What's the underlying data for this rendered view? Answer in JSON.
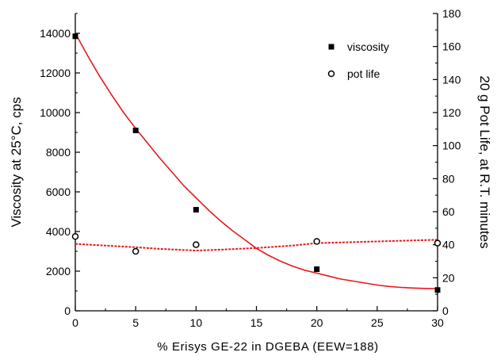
{
  "chart_data": {
    "type": "scatter",
    "xlabel": "% Erisys GE-22 in DGEBA (EEW=188)",
    "ylabel_left": "Viscosity at 25°C, cps",
    "ylabel_right": "20 g Pot Life, at R.T. minutes",
    "xlim": [
      0,
      30
    ],
    "ylim_left": [
      0,
      15000
    ],
    "ylim_right": [
      0,
      180
    ],
    "x_ticks": [
      "0",
      "5",
      "10",
      "15",
      "20",
      "25",
      "30"
    ],
    "y_left_ticks": [
      "0",
      "2000",
      "4000",
      "6000",
      "8000",
      "10000",
      "12000",
      "14000"
    ],
    "y_right_ticks": [
      "0",
      "20",
      "40",
      "60",
      "80",
      "100",
      "120",
      "140",
      "160",
      "180"
    ],
    "x_tick_values": [
      0,
      5,
      10,
      15,
      20,
      25,
      30
    ],
    "y_left_tick_values": [
      0,
      2000,
      4000,
      6000,
      8000,
      10000,
      12000,
      14000
    ],
    "y_right_tick_values": [
      0,
      20,
      40,
      60,
      80,
      100,
      120,
      140,
      160,
      180
    ],
    "grid": false,
    "legend_position": "top-right",
    "series": [
      {
        "name": "viscosity",
        "axis": "left",
        "marker": "filled-square",
        "color": "#000000",
        "points": [
          [
            0,
            13850
          ],
          [
            5,
            9100
          ],
          [
            10,
            5100
          ],
          [
            20,
            2100
          ],
          [
            30,
            1050
          ]
        ]
      },
      {
        "name": "pot life",
        "axis": "right",
        "marker": "open-circle",
        "color": "#000000",
        "points": [
          [
            0,
            45
          ],
          [
            5,
            36
          ],
          [
            10,
            40
          ],
          [
            20,
            42
          ],
          [
            30,
            41
          ]
        ]
      }
    ],
    "fit_lines": [
      {
        "axis": "left",
        "style": "solid",
        "color": "#e8191c",
        "points": [
          [
            0,
            14000
          ],
          [
            1,
            12900
          ],
          [
            2,
            11850
          ],
          [
            3,
            10900
          ],
          [
            4,
            10000
          ],
          [
            5,
            9200
          ],
          [
            6,
            8450
          ],
          [
            7,
            7700
          ],
          [
            8,
            7000
          ],
          [
            9,
            6300
          ],
          [
            10,
            5700
          ],
          [
            11,
            5100
          ],
          [
            12,
            4550
          ],
          [
            13,
            4050
          ],
          [
            14,
            3600
          ],
          [
            15,
            3150
          ],
          [
            16,
            2800
          ],
          [
            17,
            2500
          ],
          [
            18,
            2250
          ],
          [
            19,
            2050
          ],
          [
            20,
            1900
          ],
          [
            21,
            1750
          ],
          [
            22,
            1600
          ],
          [
            23,
            1500
          ],
          [
            24,
            1400
          ],
          [
            25,
            1300
          ],
          [
            26,
            1230
          ],
          [
            27,
            1180
          ],
          [
            28,
            1150
          ],
          [
            29,
            1130
          ],
          [
            30,
            1120
          ]
        ]
      },
      {
        "axis": "right",
        "style": "dashed",
        "color": "#e8191c",
        "points": [
          [
            0,
            40.5
          ],
          [
            5,
            38.5
          ],
          [
            7,
            37.5
          ],
          [
            10,
            36.5
          ],
          [
            12,
            37
          ],
          [
            15,
            38
          ],
          [
            18,
            39.5
          ],
          [
            20,
            41
          ],
          [
            25,
            42
          ],
          [
            30,
            43
          ]
        ]
      }
    ]
  }
}
